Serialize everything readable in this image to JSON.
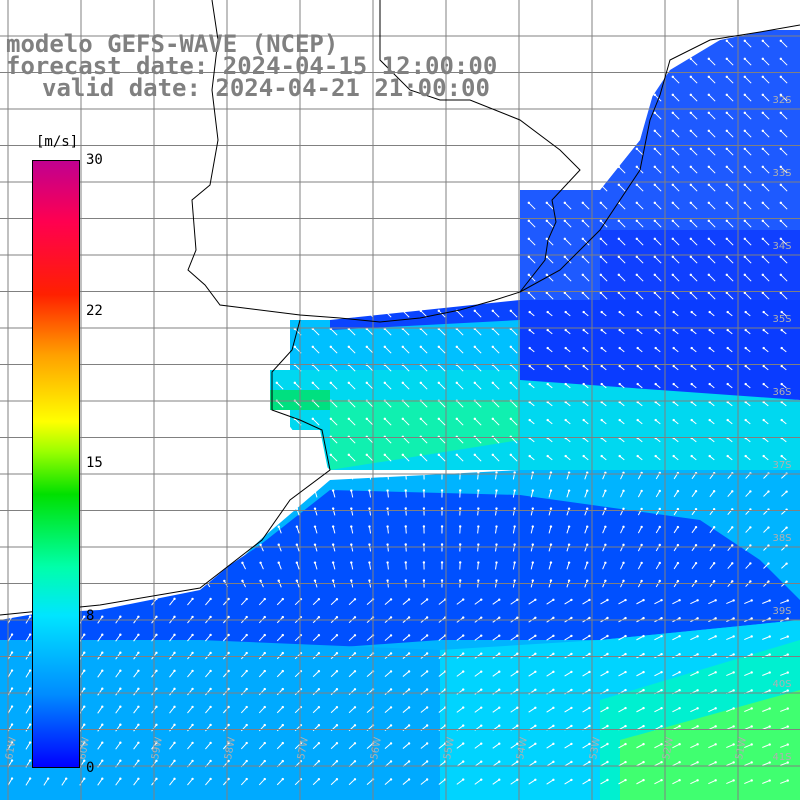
{
  "header": {
    "line1": "modelo GEFS-WAVE (NCEP)",
    "line2": "forecast date: 2024-04-15 12:00:00",
    "line3": "valid date: 2024-04-21 21:00:00"
  },
  "colorbar": {
    "unit": "[m/s]",
    "ticks": [
      "30",
      "22",
      "15",
      "8",
      "0"
    ],
    "min": 0,
    "max": 30
  },
  "grid": {
    "lat_labels": [
      "32S",
      "33S",
      "34S",
      "35S",
      "36S",
      "37S",
      "38S",
      "39S",
      "40S",
      "41S"
    ],
    "lon_labels": [
      "61W",
      "60W",
      "59W",
      "58W",
      "57W",
      "56W",
      "55W",
      "54W",
      "53W",
      "52W",
      "51W"
    ]
  },
  "colors": {
    "land": "#ffffff",
    "coast": "#000000",
    "grid": "#808080",
    "arrow": "#ffffff",
    "title": "#808080"
  }
}
